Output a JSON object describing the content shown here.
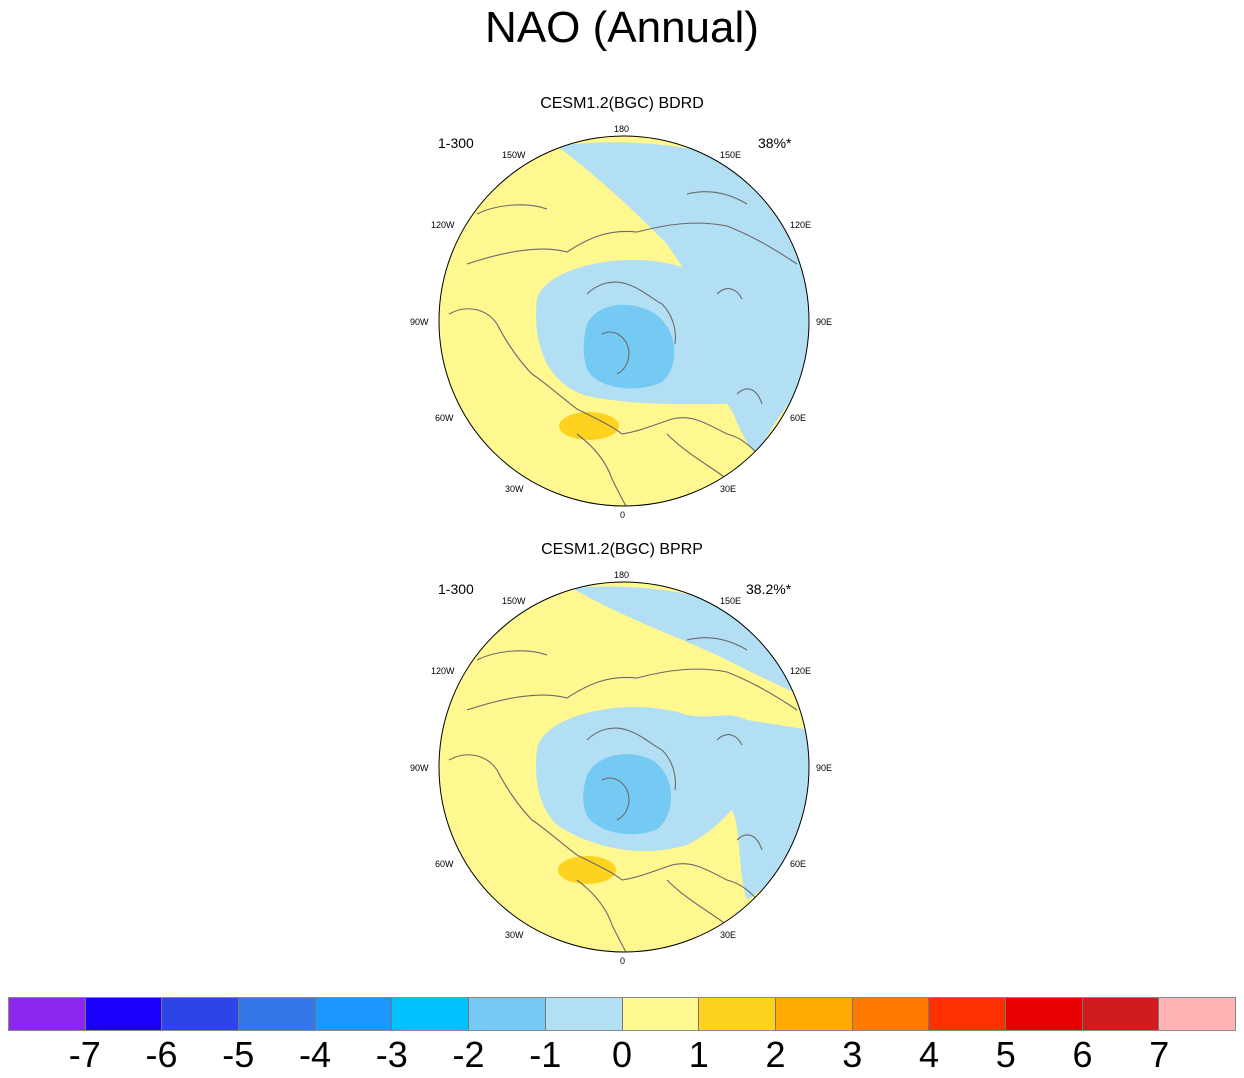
{
  "title": "NAO (Annual)",
  "panels": [
    {
      "title": "CESM1.2(BGC) BDRD",
      "left_label": "1-300",
      "right_label": "38%*",
      "lon_labels": {
        "n": "180",
        "ne1": "150E",
        "ne2": "120E",
        "e": "90E",
        "se1": "60E",
        "se2": "30E",
        "s": "0",
        "sw1": "30W",
        "sw2": "60W",
        "w": "90W",
        "nw1": "120W",
        "nw2": "150W"
      }
    },
    {
      "title": "CESM1.2(BGC) BPRP",
      "left_label": "1-300",
      "right_label": "38.2%*",
      "lon_labels": {
        "n": "180",
        "ne1": "150E",
        "ne2": "120E",
        "e": "90E",
        "se1": "60E",
        "se2": "30E",
        "s": "0",
        "sw1": "30W",
        "sw2": "60W",
        "w": "90W",
        "nw1": "120W",
        "nw2": "150W"
      }
    }
  ],
  "colorbar": {
    "colors": [
      "#8c27f0",
      "#1a00fa",
      "#2d44e6",
      "#3577e8",
      "#1e96ff",
      "#00c2ff",
      "#74caf3",
      "#b2dff3",
      "#fff78f",
      "#ffd21f",
      "#ffaa00",
      "#ff7a00",
      "#ff3000",
      "#e80000",
      "#d01c1c",
      "#ffb3b3"
    ],
    "labels": [
      "-7",
      "-6",
      "-5",
      "-4",
      "-3",
      "-2",
      "-1",
      "0",
      "1",
      "2",
      "3",
      "4",
      "5",
      "6",
      "7"
    ]
  },
  "fill_colors": {
    "ocean_pos": "#fff78f",
    "neg_weak": "#b2dff3",
    "neg_mid": "#74caf3",
    "pos_mid": "#ffd21f",
    "coast": "#6a6a6a"
  }
}
